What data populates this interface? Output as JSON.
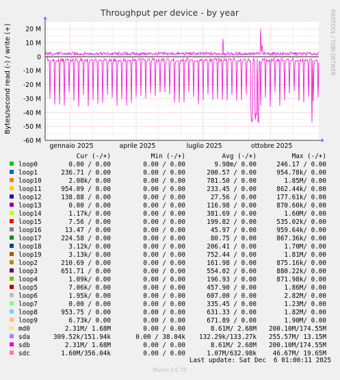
{
  "chart_data": {
    "type": "line",
    "title": "Throughput per device - by year",
    "ylabel": "Bytes/second read (-) / write (+)",
    "ylim": [
      -60000000,
      25000000
    ],
    "yticks": [
      {
        "value": 20000000,
        "label": "20 M"
      },
      {
        "value": 10000000,
        "label": "10 M"
      },
      {
        "value": 0,
        "label": "0"
      },
      {
        "value": -10000000,
        "label": "-10 M"
      },
      {
        "value": -20000000,
        "label": "-20 M"
      },
      {
        "value": -30000000,
        "label": "-30 M"
      },
      {
        "value": -40000000,
        "label": "-40 M"
      },
      {
        "value": -50000000,
        "label": "-50 M"
      },
      {
        "value": -60000000,
        "label": "-60 M"
      }
    ],
    "xlim": [
      "2024-11-28",
      "2025-12-06"
    ],
    "xticks": [
      {
        "date": "2025-01-01",
        "label": "gennaio 2025"
      },
      {
        "date": "2025-04-01",
        "label": "aprile 2025"
      },
      {
        "date": "2025-07-01",
        "label": "luglio 2025"
      },
      {
        "date": "2025-10-01",
        "label": "ottobre 2025"
      }
    ],
    "grid": true,
    "watermark": "RRDTOOL / TOBI OETIKER",
    "legend_header": {
      "cur": "Cur (-/+)",
      "min": "Min (-/+)",
      "avg": "Avg (-/+)",
      "max": "Max (-/+)"
    },
    "legend": [
      {
        "name": "loop0",
        "color": "#00cc00",
        "cur": "0.00 /  0.00",
        "min": "0.00 /  0.00",
        "avg": "9.98m/  0.00",
        "max": "246.17 /  0.00"
      },
      {
        "name": "loop1",
        "color": "#0066b3",
        "cur": "236.71 /  0.00",
        "min": "0.00 /  0.00",
        "avg": "200.57 /  0.00",
        "max": "954.78k/  0.00"
      },
      {
        "name": "loop10",
        "color": "#ff8000",
        "cur": "2.08k/  0.00",
        "min": "0.00 /  0.00",
        "avg": "781.50 /  0.00",
        "max": "1.85M/  0.00"
      },
      {
        "name": "loop11",
        "color": "#ffcc00",
        "cur": "954.09 /  0.00",
        "min": "0.00 /  0.00",
        "avg": "233.45 /  0.00",
        "max": "862.44k/  0.00"
      },
      {
        "name": "loop12",
        "color": "#330099",
        "cur": "138.88 /  0.00",
        "min": "0.00 /  0.00",
        "avg": "27.56 /  0.00",
        "max": "177.61k/  0.00"
      },
      {
        "name": "loop13",
        "color": "#990099",
        "cur": "0.00 /  0.00",
        "min": "0.00 /  0.00",
        "avg": "116.98 /  0.00",
        "max": "870.60k/  0.00"
      },
      {
        "name": "loop14",
        "color": "#ccff00",
        "cur": "1.17k/  0.00",
        "min": "0.00 /  0.00",
        "avg": "381.69 /  0.00",
        "max": "1.60M/  0.00"
      },
      {
        "name": "loop15",
        "color": "#ff0000",
        "cur": "7.56 /  0.00",
        "min": "0.00 /  0.00",
        "avg": "199.82 /  0.00",
        "max": "535.02k/  0.00"
      },
      {
        "name": "loop16",
        "color": "#808080",
        "cur": "13.47 /  0.00",
        "min": "0.00 /  0.00",
        "avg": "45.97 /  0.00",
        "max": "959.64k/  0.00"
      },
      {
        "name": "loop17",
        "color": "#008f00",
        "cur": "224.58 /  0.00",
        "min": "0.00 /  0.00",
        "avg": "80.75 /  0.00",
        "max": "867.36k/  0.00"
      },
      {
        "name": "loop18",
        "color": "#00487d",
        "cur": "3.12k/  0.00",
        "min": "0.00 /  0.00",
        "avg": "206.41 /  0.00",
        "max": "1.70M/  0.00"
      },
      {
        "name": "loop19",
        "color": "#b35a00",
        "cur": "3.13k/  0.00",
        "min": "0.00 /  0.00",
        "avg": "752.44 /  0.00",
        "max": "1.81M/  0.00"
      },
      {
        "name": "loop2",
        "color": "#b38f00",
        "cur": "210.69 /  0.00",
        "min": "0.00 /  0.00",
        "avg": "161.98 /  0.00",
        "max": "875.16k/  0.00"
      },
      {
        "name": "loop3",
        "color": "#6b006b",
        "cur": "651.71 /  0.00",
        "min": "0.00 /  0.00",
        "avg": "554.02 /  0.00",
        "max": "880.22k/  0.00"
      },
      {
        "name": "loop4",
        "color": "#8fb300",
        "cur": "1.09k/  0.00",
        "min": "0.00 /  0.00",
        "avg": "196.93 /  0.00",
        "max": "871.98k/  0.00"
      },
      {
        "name": "loop5",
        "color": "#b30000",
        "cur": "7.06k/  0.00",
        "min": "0.00 /  0.00",
        "avg": "457.90 /  0.00",
        "max": "1.86M/  0.00"
      },
      {
        "name": "loop6",
        "color": "#bebebe",
        "cur": "1.95k/  0.00",
        "min": "0.00 /  0.00",
        "avg": "607.00 /  0.00",
        "max": "2.82M/  0.00"
      },
      {
        "name": "loop7",
        "color": "#80ff80",
        "cur": "0.00 /  0.00",
        "min": "0.00 /  0.00",
        "avg": "335.45 /  0.00",
        "max": "1.23M/  0.00"
      },
      {
        "name": "loop8",
        "color": "#80c9ff",
        "cur": "953.75 /  0.00",
        "min": "0.00 /  0.00",
        "avg": "631.33 /  0.00",
        "max": "1.82M/  0.00"
      },
      {
        "name": "loop9",
        "color": "#ffc080",
        "cur": "6.73k/  0.00",
        "min": "0.00 /  0.00",
        "avg": "671.89 /  0.00",
        "max": "1.90M/  0.00"
      },
      {
        "name": "md0",
        "color": "#ffe680",
        "cur": "2.31M/  1.68M",
        "min": "0.00 /  0.00",
        "avg": "8.61M/  2.68M",
        "max": "200.10M/174.55M"
      },
      {
        "name": "sda",
        "color": "#aa80ff",
        "cur": "309.52k/151.94k",
        "min": "0.00 / 38.04k",
        "avg": "132.29k/133.27k",
        "max": "255.57M/ 13.15M"
      },
      {
        "name": "sdb",
        "color": "#ee00cc",
        "cur": "2.31M/  1.68M",
        "min": "0.00 /  0.00",
        "avg": "8.61M/  2.68M",
        "max": "200.10M/174.55M"
      },
      {
        "name": "sdc",
        "color": "#ff8080",
        "cur": "1.60M/356.04k",
        "min": "0.00 /  0.00",
        "avg": "1.07M/632.98k",
        "max": "46.67M/ 19.65M"
      }
    ],
    "last_update": "Last update: Sat Dec  6 01:00:11 2025",
    "footer": "Munin 2.0.75"
  }
}
